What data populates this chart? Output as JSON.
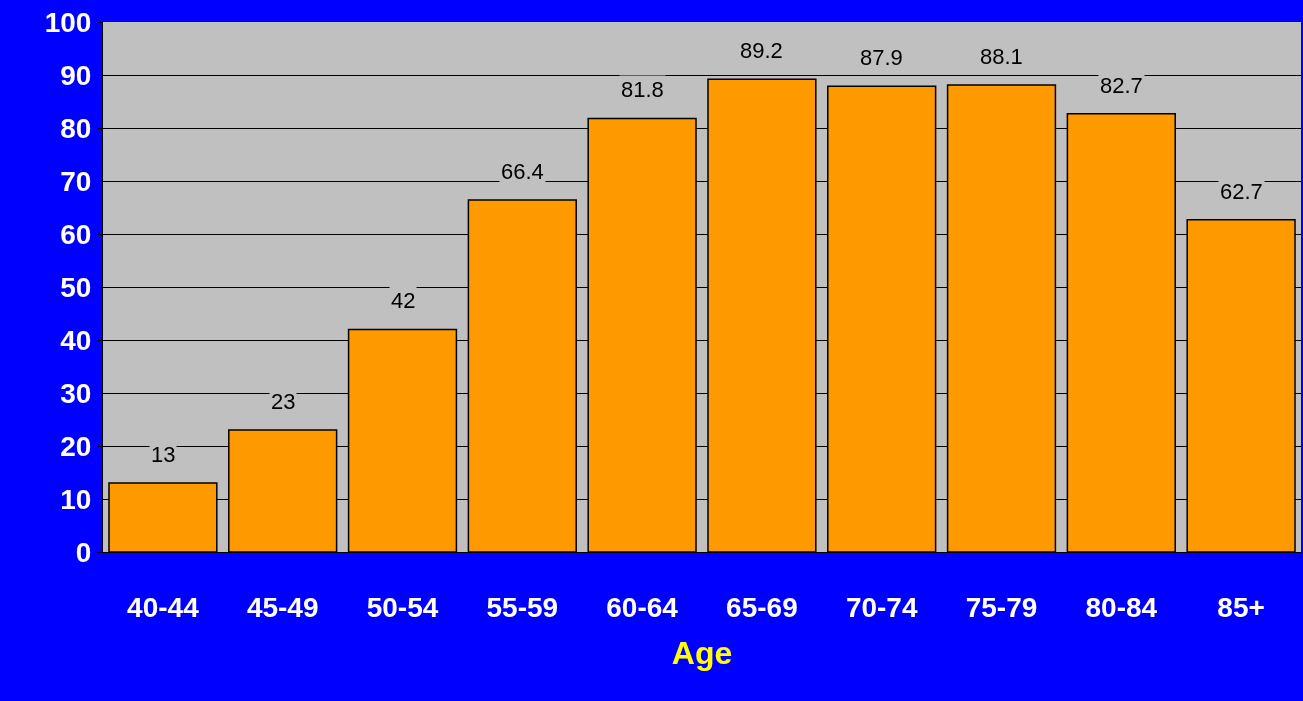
{
  "chart_data": {
    "type": "bar",
    "xlabel": "Age",
    "categories": [
      "40-44",
      "45-49",
      "50-54",
      "55-59",
      "60-64",
      "65-69",
      "70-74",
      "75-79",
      "80-84",
      "85+"
    ],
    "values": [
      13,
      23,
      42,
      66.4,
      81.8,
      89.2,
      87.9,
      88.1,
      82.7,
      62.7
    ],
    "color": "#ff9900",
    "ylim": [
      0,
      100
    ],
    "yticks": [
      0,
      10,
      20,
      30,
      40,
      50,
      60,
      70,
      80,
      90,
      100
    ],
    "grid": "y",
    "data_labels": true
  }
}
